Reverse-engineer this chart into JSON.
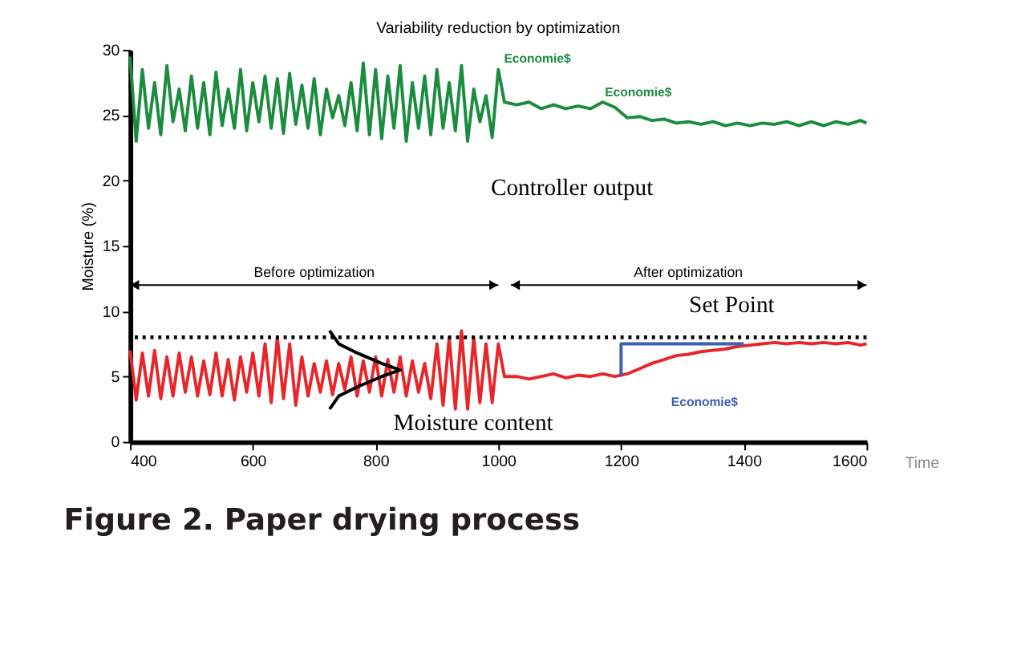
{
  "chart_data": {
    "type": "line",
    "title": "Variability reduction by optimization",
    "xlabel": "Time",
    "ylabel": "Moisture (%)",
    "xlim": [
      400,
      1600
    ],
    "ylim": [
      0,
      30
    ],
    "xticks": [
      400,
      600,
      800,
      1000,
      1200,
      1400,
      1600
    ],
    "yticks": [
      0,
      5,
      10,
      15,
      20,
      25,
      30
    ],
    "grid": false,
    "legend": false,
    "line_style": "solid",
    "marker": "none",
    "series": [
      {
        "color": "#1a8c3e",
        "x": [
          400,
          410,
          420,
          430,
          440,
          450,
          460,
          470,
          480,
          490,
          500,
          510,
          520,
          530,
          540,
          550,
          560,
          570,
          580,
          590,
          600,
          610,
          620,
          630,
          640,
          650,
          660,
          670,
          680,
          690,
          700,
          710,
          720,
          730,
          740,
          750,
          760,
          770,
          780,
          790,
          800,
          810,
          820,
          830,
          840,
          850,
          860,
          870,
          880,
          890,
          900,
          910,
          920,
          930,
          940,
          950,
          960,
          970,
          980,
          990,
          1000,
          1010,
          1030,
          1050,
          1070,
          1090,
          1110,
          1130,
          1150,
          1170,
          1190,
          1210,
          1230,
          1250,
          1270,
          1290,
          1310,
          1330,
          1350,
          1370,
          1390,
          1410,
          1430,
          1450,
          1470,
          1490,
          1510,
          1530,
          1550,
          1570,
          1590,
          1600
        ],
        "values": [
          29.5,
          23,
          28.5,
          24,
          27.5,
          23.5,
          28.8,
          24.5,
          27,
          23.8,
          28,
          24,
          27.5,
          23.5,
          28.3,
          24.2,
          27,
          24,
          28.5,
          23.8,
          27.5,
          24.5,
          28,
          24,
          27.8,
          23.6,
          28.2,
          24.3,
          27.3,
          24,
          27.8,
          23.5,
          27,
          24.8,
          26.5,
          24.2,
          27.5,
          23.8,
          29,
          23.5,
          28.5,
          23.2,
          28,
          24,
          28.8,
          23,
          27.5,
          24,
          28,
          23.5,
          28.5,
          24,
          27.5,
          23.8,
          28.8,
          23,
          27,
          24.5,
          26.5,
          23.3,
          28.5,
          26,
          25.8,
          26,
          25.5,
          25.8,
          25.5,
          25.7,
          25.5,
          26,
          25.6,
          24.8,
          24.9,
          24.6,
          24.7,
          24.4,
          24.5,
          24.3,
          24.5,
          24.2,
          24.4,
          24.2,
          24.4,
          24.3,
          24.5,
          24.2,
          24.5,
          24.2,
          24.5,
          24.3,
          24.6,
          24.4
        ]
      },
      {
        "color": "#e8262a",
        "x": [
          400,
          410,
          420,
          430,
          440,
          450,
          460,
          470,
          480,
          490,
          500,
          510,
          520,
          530,
          540,
          550,
          560,
          570,
          580,
          590,
          600,
          610,
          620,
          630,
          640,
          650,
          660,
          670,
          680,
          690,
          700,
          710,
          720,
          730,
          740,
          750,
          760,
          770,
          780,
          790,
          800,
          810,
          820,
          830,
          840,
          850,
          860,
          870,
          880,
          890,
          900,
          910,
          920,
          930,
          940,
          950,
          960,
          970,
          980,
          990,
          1000,
          1010,
          1030,
          1050,
          1070,
          1090,
          1110,
          1130,
          1150,
          1170,
          1190,
          1210,
          1230,
          1250,
          1270,
          1290,
          1310,
          1330,
          1350,
          1370,
          1390,
          1410,
          1430,
          1450,
          1470,
          1490,
          1510,
          1530,
          1550,
          1570,
          1590,
          1600
        ],
        "values": [
          7,
          3.2,
          6.8,
          3.5,
          7,
          3.3,
          6.5,
          3.5,
          6.8,
          3.8,
          6.5,
          3.5,
          6.2,
          3.6,
          6.8,
          3.5,
          6.3,
          3.2,
          6.5,
          3.8,
          6.8,
          3.5,
          7.5,
          3,
          8,
          3.3,
          7.5,
          2.8,
          6.5,
          3.5,
          6,
          3.8,
          6.2,
          3.6,
          6,
          4,
          6.5,
          3.5,
          6.2,
          3.8,
          6.5,
          3.5,
          6.3,
          3.8,
          6.5,
          3.5,
          6.2,
          3.8,
          6,
          3.3,
          7.5,
          2.8,
          8,
          2.5,
          8.5,
          2.5,
          8,
          3,
          7.5,
          3,
          7.5,
          5,
          5,
          4.8,
          5,
          5.2,
          4.9,
          5.1,
          5,
          5.2,
          5,
          5.2,
          5.6,
          6,
          6.3,
          6.6,
          6.7,
          6.9,
          7,
          7.1,
          7.3,
          7.4,
          7.5,
          7.6,
          7.5,
          7.6,
          7.5,
          7.6,
          7.5,
          7.6,
          7.4,
          7.5
        ]
      },
      {
        "color": "#3a5fb0",
        "x": [
          1200,
          1200,
          1400
        ],
        "values": [
          5,
          7.5,
          7.5
        ]
      },
      {
        "color": "#000000",
        "x": [
          725,
          740,
          770,
          810,
          840,
          810,
          770,
          740,
          725
        ],
        "values": [
          8.5,
          7.5,
          6.8,
          6,
          5.5,
          5,
          4.2,
          3.5,
          2.5
        ]
      }
    ],
    "ref_lines": [
      {
        "axis": "y",
        "value": 8,
        "color": "#000000",
        "line_style": "dotted"
      }
    ],
    "annotations": [
      "Before optimization",
      "After optimization",
      "Controller output",
      "Moisture content",
      "Set Point",
      "Economie$",
      "Economie$",
      "Economie$",
      "Figure 2.  Paper drying process"
    ]
  }
}
